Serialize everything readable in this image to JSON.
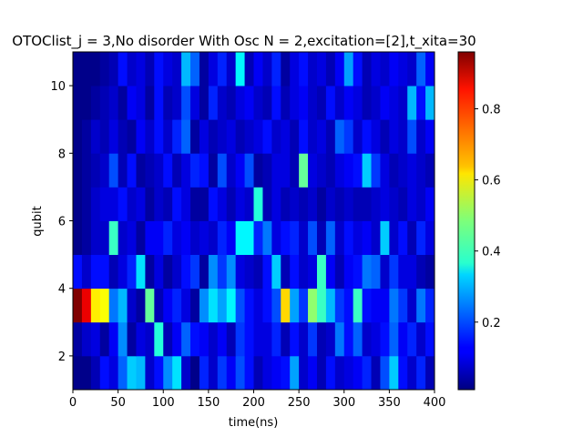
{
  "chart_data": {
    "type": "heatmap",
    "title": "OTOClist_j = 3,No disorder  With Osc N =  2,excitation=[2],t_xita=30",
    "xlabel": "time(ns)",
    "ylabel": "qubit",
    "xlim": [
      0,
      400
    ],
    "ylim": [
      1,
      11
    ],
    "x_edges_step": 10,
    "y_rows": [
      1,
      2,
      3,
      4,
      5,
      6,
      7,
      8,
      9,
      10
    ],
    "x_ticks": [
      0,
      50,
      100,
      150,
      200,
      250,
      300,
      350,
      400
    ],
    "x_tick_labels": [
      "0",
      "50",
      "100",
      "150",
      "200",
      "250",
      "300",
      "350",
      "400"
    ],
    "y_ticks": [
      2,
      4,
      6,
      8,
      10
    ],
    "y_tick_labels": [
      "2",
      "4",
      "6",
      "8",
      "10"
    ],
    "colorbar": {
      "colormap": "jet",
      "vmin": 0.01,
      "vmax": 0.96,
      "ticks": [
        0.2,
        0.4,
        0.6,
        0.8
      ],
      "tick_labels": [
        "0.2",
        "0.4",
        "0.6",
        "0.8"
      ]
    },
    "z": [
      [
        0.02,
        0.02,
        0.06,
        0.14,
        0.1,
        0.22,
        0.32,
        0.3,
        0.08,
        0.14,
        0.26,
        0.34,
        0.08,
        0.02,
        0.16,
        0.08,
        0.18,
        0.12,
        0.2,
        0.14,
        0.06,
        0.1,
        0.12,
        0.14,
        0.28,
        0.08,
        0.12,
        0.06,
        0.14,
        0.08,
        0.1,
        0.12,
        0.16,
        0.06,
        0.2,
        0.32,
        0.14,
        0.08,
        0.16,
        0.06
      ],
      [
        0.04,
        0.08,
        0.1,
        0.04,
        0.12,
        0.26,
        0.04,
        0.1,
        0.08,
        0.4,
        0.06,
        0.12,
        0.22,
        0.14,
        0.12,
        0.08,
        0.12,
        0.06,
        0.18,
        0.14,
        0.1,
        0.1,
        0.16,
        0.06,
        0.14,
        0.08,
        0.18,
        0.06,
        0.08,
        0.24,
        0.14,
        0.22,
        0.08,
        0.1,
        0.14,
        0.22,
        0.12,
        0.16,
        0.08,
        0.14
      ],
      [
        0.96,
        0.86,
        0.62,
        0.6,
        0.24,
        0.3,
        0.08,
        0.04,
        0.46,
        0.06,
        0.12,
        0.16,
        0.1,
        0.04,
        0.26,
        0.34,
        0.28,
        0.36,
        0.2,
        0.14,
        0.1,
        0.14,
        0.2,
        0.64,
        0.28,
        0.18,
        0.5,
        0.42,
        0.3,
        0.18,
        0.14,
        0.42,
        0.14,
        0.12,
        0.12,
        0.24,
        0.18,
        0.08,
        0.24,
        0.16
      ],
      [
        0.14,
        0.08,
        0.14,
        0.14,
        0.06,
        0.1,
        0.16,
        0.34,
        0.04,
        0.1,
        0.04,
        0.08,
        0.14,
        0.18,
        0.04,
        0.26,
        0.18,
        0.26,
        0.1,
        0.08,
        0.06,
        0.14,
        0.32,
        0.06,
        0.14,
        0.08,
        0.1,
        0.42,
        0.12,
        0.06,
        0.12,
        0.14,
        0.24,
        0.22,
        0.08,
        0.18,
        0.1,
        0.1,
        0.06,
        0.04
      ],
      [
        0.02,
        0.04,
        0.08,
        0.08,
        0.42,
        0.08,
        0.1,
        0.04,
        0.12,
        0.12,
        0.16,
        0.1,
        0.12,
        0.08,
        0.1,
        0.08,
        0.16,
        0.12,
        0.36,
        0.36,
        0.16,
        0.24,
        0.1,
        0.14,
        0.16,
        0.08,
        0.2,
        0.06,
        0.22,
        0.08,
        0.14,
        0.1,
        0.12,
        0.08,
        0.32,
        0.08,
        0.14,
        0.06,
        0.16,
        0.1
      ],
      [
        0.02,
        0.04,
        0.08,
        0.1,
        0.1,
        0.14,
        0.08,
        0.1,
        0.04,
        0.08,
        0.06,
        0.14,
        0.1,
        0.04,
        0.04,
        0.14,
        0.1,
        0.06,
        0.1,
        0.08,
        0.4,
        0.06,
        0.1,
        0.06,
        0.08,
        0.06,
        0.08,
        0.04,
        0.08,
        0.06,
        0.08,
        0.06,
        0.06,
        0.08,
        0.1,
        0.08,
        0.06,
        0.1,
        0.08,
        0.12
      ],
      [
        0.02,
        0.04,
        0.06,
        0.08,
        0.2,
        0.06,
        0.14,
        0.04,
        0.06,
        0.08,
        0.14,
        0.06,
        0.1,
        0.16,
        0.14,
        0.04,
        0.2,
        0.08,
        0.12,
        0.2,
        0.04,
        0.06,
        0.1,
        0.1,
        0.06,
        0.46,
        0.1,
        0.08,
        0.06,
        0.1,
        0.12,
        0.14,
        0.32,
        0.18,
        0.1,
        0.06,
        0.08,
        0.1,
        0.08,
        0.06
      ],
      [
        0.02,
        0.04,
        0.08,
        0.06,
        0.1,
        0.06,
        0.04,
        0.12,
        0.08,
        0.14,
        0.08,
        0.16,
        0.22,
        0.04,
        0.1,
        0.06,
        0.08,
        0.1,
        0.06,
        0.08,
        0.1,
        0.14,
        0.08,
        0.1,
        0.06,
        0.14,
        0.08,
        0.1,
        0.06,
        0.22,
        0.18,
        0.08,
        0.14,
        0.1,
        0.06,
        0.1,
        0.08,
        0.2,
        0.08,
        0.12
      ],
      [
        0.02,
        0.02,
        0.04,
        0.06,
        0.08,
        0.04,
        0.12,
        0.1,
        0.04,
        0.14,
        0.06,
        0.08,
        0.2,
        0.1,
        0.04,
        0.16,
        0.08,
        0.06,
        0.1,
        0.12,
        0.08,
        0.06,
        0.14,
        0.06,
        0.1,
        0.12,
        0.08,
        0.06,
        0.14,
        0.08,
        0.12,
        0.1,
        0.06,
        0.08,
        0.12,
        0.1,
        0.08,
        0.3,
        0.14,
        0.3
      ],
      [
        0.02,
        0.02,
        0.02,
        0.04,
        0.06,
        0.14,
        0.08,
        0.1,
        0.06,
        0.14,
        0.1,
        0.08,
        0.3,
        0.22,
        0.04,
        0.1,
        0.16,
        0.08,
        0.36,
        0.06,
        0.12,
        0.08,
        0.16,
        0.04,
        0.1,
        0.14,
        0.08,
        0.1,
        0.06,
        0.12,
        0.28,
        0.14,
        0.06,
        0.1,
        0.08,
        0.12,
        0.1,
        0.08,
        0.22,
        0.12
      ]
    ]
  }
}
